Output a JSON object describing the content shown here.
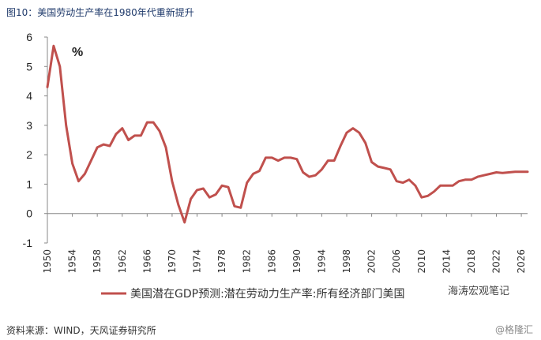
{
  "figure_title": "图10：美国劳动生产率在1980年代重新提升",
  "source": "资料来源：WIND，天风证券研究所",
  "watermark": "@格隆汇",
  "watermark_inline": "海涛宏观笔记",
  "colors": {
    "line": "#c0504d",
    "axis": "#888888",
    "title": "#1f3a6b"
  },
  "chart_data": {
    "type": "line",
    "title": "",
    "unit_label": "%",
    "xlabel": "",
    "ylabel": "",
    "ylim": [
      -1,
      6
    ],
    "xlim": [
      1950,
      2027
    ],
    "yticks": [
      "6",
      "5",
      "4",
      "3",
      "2",
      "1",
      "0",
      "-1"
    ],
    "ytick_values": [
      6,
      5,
      4,
      3,
      2,
      1,
      0,
      -1
    ],
    "xticks": [
      "1950",
      "1954",
      "1958",
      "1962",
      "1966",
      "1970",
      "1974",
      "1978",
      "1982",
      "1986",
      "1990",
      "1994",
      "1998",
      "2002",
      "2006",
      "2010",
      "2014",
      "2018",
      "2022",
      "2026"
    ],
    "xtick_values": [
      1950,
      1954,
      1958,
      1962,
      1966,
      1970,
      1974,
      1978,
      1982,
      1986,
      1990,
      1994,
      1998,
      2002,
      2006,
      2010,
      2014,
      2018,
      2022,
      2026
    ],
    "legend": {
      "position": "bottom-left",
      "label": "美国潜在GDP预测:潜在劳动力生产率:所有经济部门美国"
    },
    "series": [
      {
        "name": "美国潜在GDP预测:潜在劳动力生产率:所有经济部门美国",
        "x": [
          1950,
          1951,
          1952,
          1953,
          1954,
          1955,
          1956,
          1957,
          1958,
          1959,
          1960,
          1961,
          1962,
          1963,
          1964,
          1965,
          1966,
          1967,
          1968,
          1969,
          1970,
          1971,
          1972,
          1973,
          1974,
          1975,
          1976,
          1977,
          1978,
          1979,
          1980,
          1981,
          1982,
          1983,
          1984,
          1985,
          1986,
          1987,
          1988,
          1989,
          1990,
          1991,
          1992,
          1993,
          1994,
          1995,
          1996,
          1997,
          1998,
          1999,
          2000,
          2001,
          2002,
          2003,
          2004,
          2005,
          2006,
          2007,
          2008,
          2009,
          2010,
          2011,
          2012,
          2013,
          2014,
          2015,
          2016,
          2017,
          2018,
          2019,
          2020,
          2021,
          2022,
          2023,
          2024,
          2025,
          2026,
          2027
        ],
        "values": [
          4.3,
          5.7,
          5.0,
          3.0,
          1.7,
          1.1,
          1.35,
          1.8,
          2.25,
          2.35,
          2.3,
          2.7,
          2.9,
          2.5,
          2.65,
          2.65,
          3.1,
          3.1,
          2.8,
          2.25,
          1.1,
          0.3,
          -0.3,
          0.5,
          0.8,
          0.85,
          0.55,
          0.65,
          0.95,
          0.9,
          0.25,
          0.2,
          1.05,
          1.35,
          1.45,
          1.9,
          1.9,
          1.8,
          1.9,
          1.9,
          1.85,
          1.4,
          1.25,
          1.3,
          1.5,
          1.8,
          1.8,
          2.3,
          2.75,
          2.9,
          2.75,
          2.4,
          1.75,
          1.6,
          1.55,
          1.5,
          1.1,
          1.05,
          1.15,
          0.95,
          0.55,
          0.6,
          0.75,
          0.95,
          0.95,
          0.95,
          1.1,
          1.15,
          1.15,
          1.25,
          1.3,
          1.35,
          1.4,
          1.38,
          1.4,
          1.42,
          1.42,
          1.42
        ]
      }
    ]
  }
}
